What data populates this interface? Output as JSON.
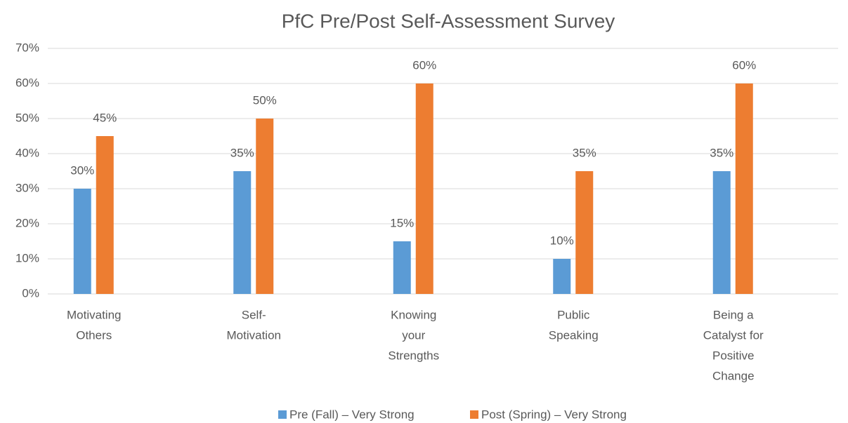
{
  "chart_data": {
    "type": "bar",
    "title": "PfC Pre/Post Self-Assessment Survey",
    "categories": [
      [
        "Motivating",
        "Others"
      ],
      [
        "Self-",
        "Motivation"
      ],
      [
        "Knowing",
        "your",
        "Strengths"
      ],
      [
        "Public",
        "Speaking"
      ],
      [
        "Being a",
        "Catalyst for",
        "Positive",
        "Change"
      ]
    ],
    "series": [
      {
        "name": "Pre (Fall) – Very Strong",
        "color": "#5b9bd5",
        "values": [
          30,
          35,
          15,
          10,
          35
        ],
        "value_labels": [
          "30%",
          "35%",
          "15%",
          "10%",
          "35%"
        ]
      },
      {
        "name": "Post (Spring) – Very Strong",
        "color": "#ed7d31",
        "values": [
          45,
          50,
          60,
          35,
          60
        ],
        "value_labels": [
          "45%",
          "50%",
          "60%",
          "35%",
          "60%"
        ]
      }
    ],
    "ylim": [
      0,
      70
    ],
    "yticks": [
      {
        "value": 0,
        "label": "0%"
      },
      {
        "value": 10,
        "label": "10%"
      },
      {
        "value": 20,
        "label": "20%"
      },
      {
        "value": 30,
        "label": "30%"
      },
      {
        "value": 40,
        "label": "40%"
      },
      {
        "value": 50,
        "label": "50%"
      },
      {
        "value": 60,
        "label": "60%"
      },
      {
        "value": 70,
        "label": "70%"
      }
    ],
    "grid": true,
    "legend": "bottom"
  }
}
